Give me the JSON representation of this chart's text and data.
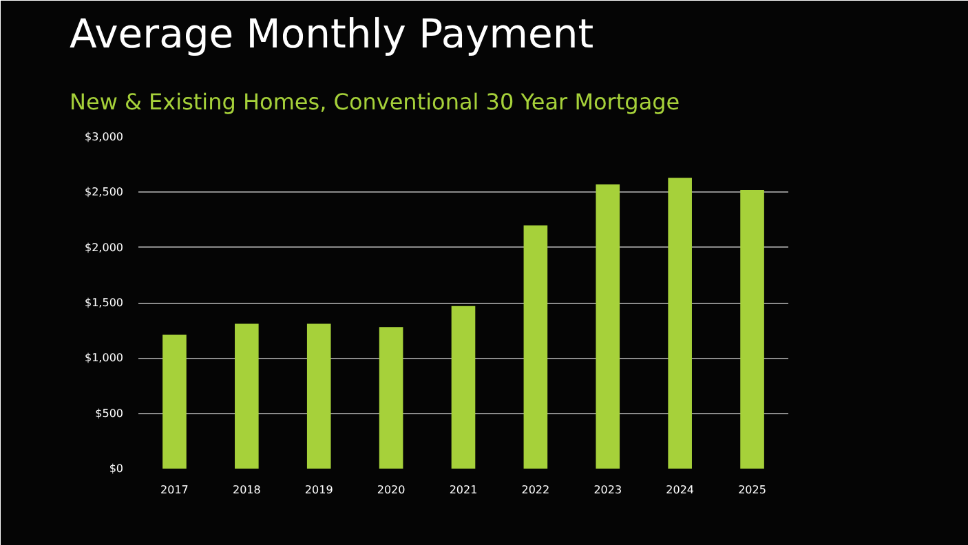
{
  "chart_data": {
    "type": "bar",
    "title": "Average Monthly Payment",
    "subtitle": "New & Existing Homes, Conventional 30 Year Mortgage",
    "categories": [
      "2017",
      "2018",
      "2019",
      "2020",
      "2021",
      "2022",
      "2023",
      "2024",
      "2025"
    ],
    "values": [
      1210,
      1310,
      1310,
      1280,
      1470,
      2200,
      2570,
      2630,
      2520
    ],
    "color": "#a6d13a",
    "ylim": [
      0,
      3000
    ],
    "yticks": [
      {
        "value": 0,
        "label": "$0"
      },
      {
        "value": 500,
        "label": "$500"
      },
      {
        "value": 1000,
        "label": "$1,000"
      },
      {
        "value": 1500,
        "label": "$1,500"
      },
      {
        "value": 2000,
        "label": "$2,000"
      },
      {
        "value": 2500,
        "label": "$2,500"
      },
      {
        "value": 3000,
        "label": "$3,000"
      }
    ],
    "grid": "y"
  }
}
